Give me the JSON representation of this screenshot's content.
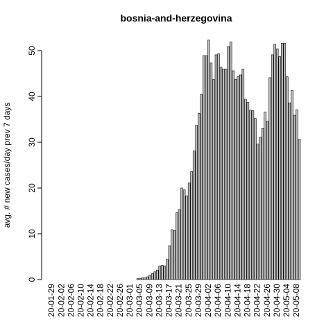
{
  "chart_data": {
    "type": "bar",
    "title": "bosnia-and-herzegovina",
    "y_label": "avg. # new cases/day prev  7  days",
    "color": "#bebebe",
    "categories": [
      "20-01-29",
      null,
      null,
      null,
      "20-02-02",
      null,
      null,
      null,
      "20-02-06",
      null,
      null,
      null,
      "20-02-10",
      null,
      null,
      null,
      "20-02-14",
      null,
      null,
      null,
      "20-02-18",
      null,
      null,
      null,
      "20-02-22",
      null,
      null,
      null,
      "20-02-26",
      null,
      null,
      null,
      "20-03-01",
      null,
      null,
      null,
      "20-03-05",
      null,
      null,
      null,
      "20-03-09",
      null,
      null,
      null,
      "20-03-13",
      null,
      null,
      null,
      "20-03-17",
      null,
      null,
      null,
      "20-03-21",
      null,
      null,
      null,
      "20-03-25",
      null,
      null,
      null,
      "20-03-29",
      null,
      null,
      null,
      "20-04-02",
      null,
      null,
      null,
      "20-04-06",
      null,
      null,
      null,
      "20-04-10",
      null,
      null,
      null,
      "20-04-14",
      null,
      null,
      null,
      "20-04-18",
      null,
      null,
      null,
      "20-04-22",
      null,
      null,
      null,
      "20-04-26",
      null,
      null,
      null,
      "20-04-30",
      null,
      null,
      null,
      "20-05-04",
      null,
      null,
      null,
      "20-05-08",
      null
    ],
    "values": [
      0,
      0,
      0,
      0,
      0,
      0,
      0,
      0,
      0,
      0,
      0,
      0,
      0,
      0,
      0,
      0,
      0,
      0,
      0,
      0,
      0,
      0,
      0,
      0,
      0,
      0,
      0,
      0,
      0,
      0,
      0,
      0,
      0,
      0,
      0,
      0.2,
      0.3,
      0.4,
      0.4,
      0.6,
      1.0,
      1.3,
      1.7,
      2.1,
      3.0,
      3.1,
      3.0,
      4.4,
      7.4,
      10.9,
      10.7,
      14.6,
      15.3,
      20.0,
      19.6,
      18.3,
      21.1,
      23.6,
      28.1,
      33.7,
      36.3,
      40.4,
      48.9,
      48.9,
      52.3,
      47.3,
      43.7,
      49.1,
      49.3,
      46.4,
      46.0,
      46.0,
      50.9,
      51.9,
      45.6,
      43.7,
      44.3,
      44.7,
      46.0,
      39.4,
      38.7,
      37.0,
      36.9,
      35.2,
      29.6,
      31.1,
      33.0,
      36.6,
      34.6,
      44.1,
      49.1,
      51.4,
      50.4,
      48.7,
      51.6,
      51.6,
      44.3,
      38.6,
      41.3,
      35.9,
      37.1,
      30.6
    ],
    "ylim": [
      0,
      54
    ],
    "yticks": [
      0,
      10,
      20,
      30,
      40,
      50
    ]
  }
}
